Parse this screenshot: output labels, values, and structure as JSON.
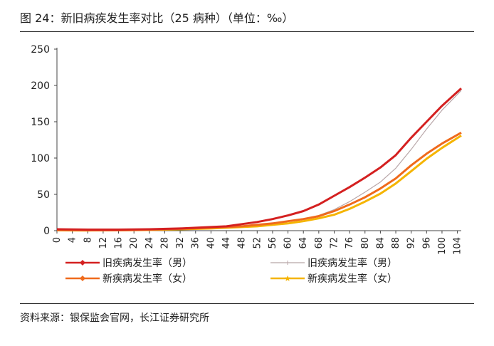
{
  "figure": {
    "title": "图 24：新旧病疾发生率对比（25 病种）（单位：‰）",
    "source": "资料来源：银保监会官网，长江证券研究所"
  },
  "chart_data": {
    "type": "line",
    "unit": "‰",
    "xlabel": "",
    "ylabel": "",
    "ylim": [
      0,
      250
    ],
    "yticks": [
      0,
      50,
      100,
      150,
      200,
      250
    ],
    "xlim": [
      0,
      105
    ],
    "xticks": [
      0,
      4,
      8,
      12,
      16,
      20,
      24,
      28,
      32,
      36,
      40,
      44,
      48,
      52,
      56,
      60,
      64,
      68,
      72,
      76,
      80,
      84,
      88,
      92,
      96,
      100,
      104
    ],
    "grid": false,
    "legend_position": "bottom",
    "x": [
      0,
      8,
      16,
      24,
      32,
      40,
      44,
      48,
      52,
      56,
      60,
      64,
      68,
      72,
      76,
      80,
      84,
      88,
      92,
      96,
      100,
      105
    ],
    "series": [
      {
        "name": "旧疾病发生率（男）",
        "color": "#d42020",
        "marker": "diamond",
        "values": [
          2,
          1.5,
          1.5,
          2,
          3,
          5,
          6,
          9,
          12,
          16,
          21,
          27,
          36,
          48,
          60,
          73,
          87,
          104,
          128,
          150,
          172,
          196
        ]
      },
      {
        "name": "旧疾病发生率（男）",
        "color": "#b8a6a8",
        "marker": "plus",
        "values": [
          1,
          0.5,
          0.5,
          1,
          2,
          3.5,
          5,
          6.5,
          8,
          10,
          13,
          16,
          21,
          29,
          40,
          53,
          67,
          86,
          112,
          140,
          166,
          193
        ]
      },
      {
        "name": "新疾病发生率（女）",
        "color": "#ef6a1c",
        "marker": "diamond",
        "values": [
          1,
          0.5,
          0.5,
          1.5,
          2.5,
          4,
          5,
          6,
          8,
          10,
          13,
          16,
          20,
          27,
          36,
          46,
          58,
          72,
          90,
          106,
          120,
          135
        ]
      },
      {
        "name": "新疾病发生率（女）",
        "color": "#f5b400",
        "marker": "star",
        "values": [
          0.5,
          0.3,
          0.5,
          1,
          2,
          3,
          4,
          5,
          6,
          8,
          10,
          13,
          17,
          22,
          30,
          40,
          51,
          65,
          82,
          99,
          114,
          131
        ]
      }
    ]
  }
}
